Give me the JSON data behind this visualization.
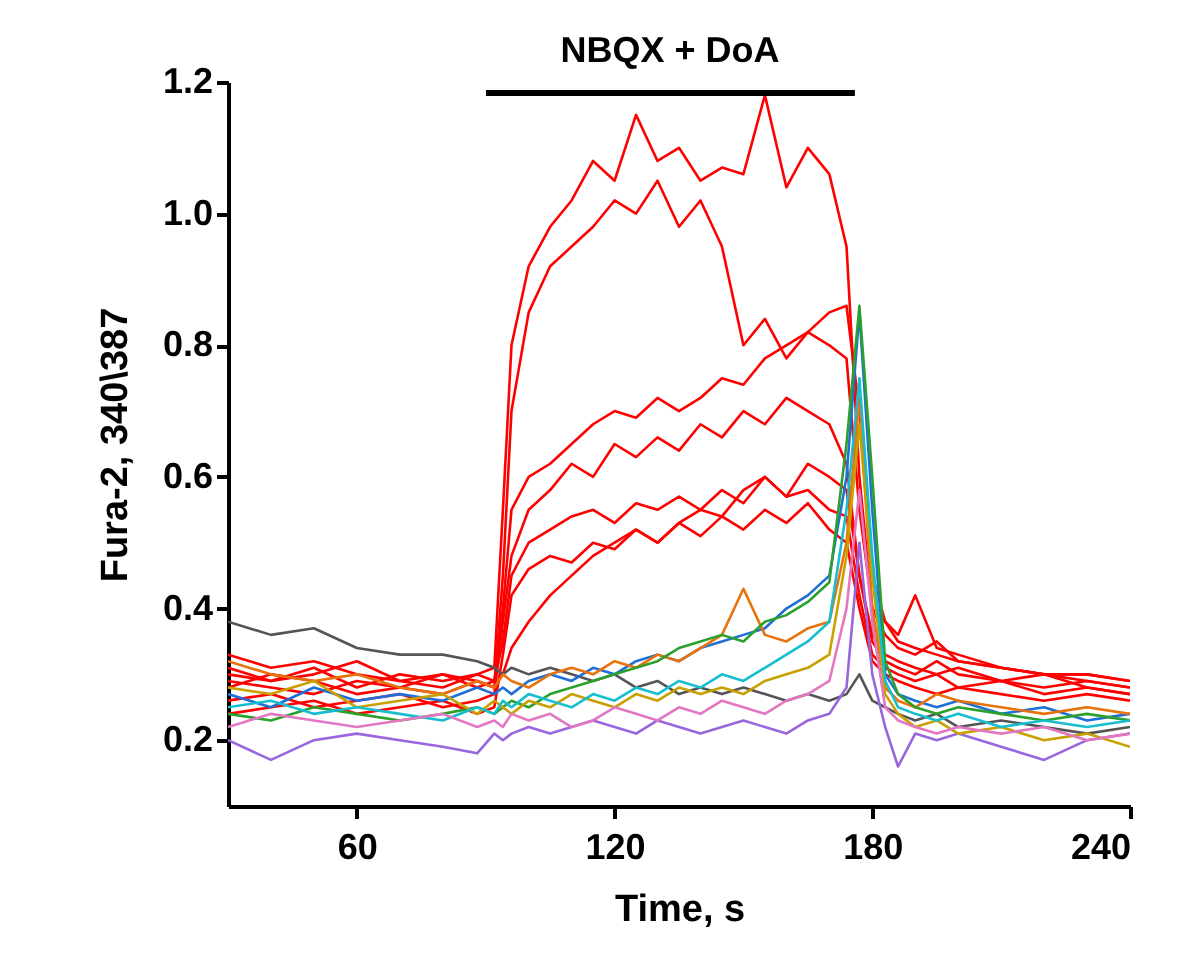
{
  "chart_data": {
    "type": "line",
    "xlabel": "Time,  s",
    "ylabel": "Fura-2, 340\\387",
    "x": [
      30,
      40,
      50,
      60,
      70,
      80,
      88,
      92,
      94,
      96,
      100,
      105,
      110,
      115,
      120,
      125,
      130,
      135,
      140,
      145,
      150,
      155,
      160,
      165,
      170,
      174,
      177,
      180,
      183,
      186,
      190,
      195,
      200,
      210,
      220,
      230,
      240
    ],
    "xlim": [
      30,
      240
    ],
    "xticks": [
      60,
      120,
      180,
      240
    ],
    "ylim": [
      0.1,
      1.2
    ],
    "yticks": [
      0.2,
      0.4,
      0.6,
      0.8,
      {
        "value": 1.0,
        "label": "1.0"
      },
      1.2
    ],
    "grid": false,
    "legend": false,
    "marker": "none",
    "line_style": "solid",
    "annotations": [
      "NBQX + DoA"
    ],
    "series": [
      {
        "color": "#ff0000",
        "values": [
          0.3,
          0.29,
          0.31,
          0.28,
          0.3,
          0.29,
          0.3,
          0.31,
          0.55,
          0.8,
          0.92,
          0.98,
          1.02,
          1.08,
          1.05,
          1.15,
          1.08,
          1.1,
          1.05,
          1.07,
          1.06,
          1.18,
          1.04,
          1.1,
          1.06,
          0.95,
          0.6,
          0.4,
          0.36,
          0.34,
          0.33,
          0.35,
          0.32,
          0.31,
          0.3,
          0.29,
          0.28
        ]
      },
      {
        "color": "#ff0000",
        "values": [
          0.28,
          0.3,
          0.29,
          0.27,
          0.28,
          0.3,
          0.29,
          0.28,
          0.45,
          0.7,
          0.85,
          0.92,
          0.95,
          0.98,
          1.02,
          1.0,
          1.05,
          0.98,
          1.02,
          0.95,
          0.8,
          0.84,
          0.78,
          0.82,
          0.8,
          0.78,
          0.55,
          0.4,
          0.38,
          0.36,
          0.42,
          0.34,
          0.33,
          0.31,
          0.3,
          0.3,
          0.29
        ]
      },
      {
        "color": "#ff0000",
        "values": [
          0.33,
          0.31,
          0.32,
          0.3,
          0.29,
          0.3,
          0.28,
          0.29,
          0.4,
          0.55,
          0.6,
          0.62,
          0.65,
          0.68,
          0.7,
          0.69,
          0.72,
          0.7,
          0.72,
          0.75,
          0.74,
          0.78,
          0.8,
          0.82,
          0.85,
          0.86,
          0.7,
          0.45,
          0.38,
          0.35,
          0.34,
          0.33,
          0.32,
          0.31,
          0.3,
          0.3,
          0.29
        ]
      },
      {
        "color": "#ff0000",
        "values": [
          0.26,
          0.27,
          0.25,
          0.26,
          0.27,
          0.25,
          0.26,
          0.27,
          0.38,
          0.48,
          0.55,
          0.58,
          0.62,
          0.6,
          0.65,
          0.63,
          0.66,
          0.64,
          0.68,
          0.66,
          0.7,
          0.68,
          0.72,
          0.7,
          0.68,
          0.62,
          0.45,
          0.36,
          0.33,
          0.32,
          0.31,
          0.3,
          0.31,
          0.29,
          0.28,
          0.29,
          0.28
        ]
      },
      {
        "color": "#ff0000",
        "values": [
          0.31,
          0.29,
          0.3,
          0.32,
          0.29,
          0.28,
          0.3,
          0.29,
          0.35,
          0.45,
          0.5,
          0.52,
          0.54,
          0.55,
          0.53,
          0.56,
          0.55,
          0.57,
          0.55,
          0.58,
          0.56,
          0.6,
          0.57,
          0.58,
          0.55,
          0.54,
          0.42,
          0.33,
          0.31,
          0.3,
          0.29,
          0.3,
          0.28,
          0.29,
          0.27,
          0.28,
          0.27
        ]
      },
      {
        "color": "#ff0000",
        "values": [
          0.24,
          0.25,
          0.26,
          0.24,
          0.25,
          0.26,
          0.24,
          0.25,
          0.33,
          0.42,
          0.46,
          0.48,
          0.47,
          0.5,
          0.49,
          0.52,
          0.5,
          0.53,
          0.51,
          0.54,
          0.52,
          0.55,
          0.53,
          0.56,
          0.52,
          0.5,
          0.4,
          0.32,
          0.3,
          0.29,
          0.28,
          0.27,
          0.28,
          0.27,
          0.26,
          0.27,
          0.26
        ]
      },
      {
        "color": "#ff0000",
        "values": [
          0.29,
          0.28,
          0.27,
          0.29,
          0.28,
          0.27,
          0.29,
          0.28,
          0.3,
          0.34,
          0.38,
          0.42,
          0.45,
          0.48,
          0.5,
          0.52,
          0.5,
          0.53,
          0.55,
          0.54,
          0.58,
          0.6,
          0.57,
          0.62,
          0.6,
          0.58,
          0.45,
          0.35,
          0.32,
          0.31,
          0.3,
          0.32,
          0.3,
          0.29,
          0.3,
          0.28,
          0.27
        ]
      },
      {
        "color": "#555555",
        "values": [
          0.38,
          0.36,
          0.37,
          0.34,
          0.33,
          0.33,
          0.32,
          0.31,
          0.3,
          0.31,
          0.3,
          0.31,
          0.3,
          0.29,
          0.3,
          0.28,
          0.29,
          0.27,
          0.28,
          0.27,
          0.28,
          0.27,
          0.26,
          0.27,
          0.26,
          0.27,
          0.3,
          0.26,
          0.25,
          0.24,
          0.23,
          0.24,
          0.22,
          0.23,
          0.22,
          0.21,
          0.22
        ]
      },
      {
        "color": "#9966dd",
        "values": [
          0.2,
          0.17,
          0.2,
          0.21,
          0.2,
          0.19,
          0.18,
          0.21,
          0.2,
          0.21,
          0.22,
          0.21,
          0.22,
          0.23,
          0.22,
          0.21,
          0.23,
          0.22,
          0.21,
          0.22,
          0.23,
          0.22,
          0.21,
          0.23,
          0.24,
          0.28,
          0.5,
          0.3,
          0.22,
          0.16,
          0.21,
          0.2,
          0.21,
          0.19,
          0.17,
          0.2,
          0.21
        ]
      },
      {
        "color": "#1f6fd6",
        "values": [
          0.27,
          0.25,
          0.28,
          0.26,
          0.27,
          0.26,
          0.28,
          0.27,
          0.28,
          0.27,
          0.29,
          0.3,
          0.29,
          0.31,
          0.3,
          0.32,
          0.33,
          0.32,
          0.34,
          0.35,
          0.36,
          0.37,
          0.4,
          0.42,
          0.45,
          0.6,
          0.85,
          0.55,
          0.3,
          0.27,
          0.26,
          0.25,
          0.26,
          0.24,
          0.25,
          0.23,
          0.24
        ]
      },
      {
        "color": "#e8720c",
        "values": [
          0.32,
          0.3,
          0.29,
          0.3,
          0.28,
          0.27,
          0.29,
          0.28,
          0.3,
          0.29,
          0.28,
          0.3,
          0.31,
          0.3,
          0.32,
          0.31,
          0.33,
          0.32,
          0.34,
          0.36,
          0.43,
          0.36,
          0.35,
          0.37,
          0.38,
          0.5,
          0.72,
          0.4,
          0.28,
          0.26,
          0.25,
          0.27,
          0.26,
          0.25,
          0.24,
          0.25,
          0.24
        ]
      },
      {
        "color": "#2ca02c",
        "values": [
          0.24,
          0.23,
          0.25,
          0.24,
          0.23,
          0.24,
          0.25,
          0.24,
          0.25,
          0.26,
          0.25,
          0.27,
          0.28,
          0.29,
          0.3,
          0.31,
          0.32,
          0.34,
          0.35,
          0.36,
          0.35,
          0.38,
          0.39,
          0.41,
          0.44,
          0.65,
          0.86,
          0.6,
          0.32,
          0.27,
          0.25,
          0.24,
          0.25,
          0.24,
          0.23,
          0.24,
          0.23
        ]
      },
      {
        "color": "#c8a000",
        "values": [
          0.28,
          0.27,
          0.29,
          0.25,
          0.26,
          0.27,
          0.24,
          0.26,
          0.25,
          0.24,
          0.26,
          0.25,
          0.27,
          0.26,
          0.25,
          0.27,
          0.26,
          0.28,
          0.27,
          0.28,
          0.27,
          0.29,
          0.3,
          0.31,
          0.33,
          0.48,
          0.68,
          0.45,
          0.27,
          0.24,
          0.22,
          0.23,
          0.21,
          0.22,
          0.2,
          0.21,
          0.19
        ]
      },
      {
        "color": "#17becf",
        "values": [
          0.25,
          0.26,
          0.24,
          0.25,
          0.24,
          0.23,
          0.25,
          0.24,
          0.26,
          0.25,
          0.27,
          0.26,
          0.25,
          0.27,
          0.26,
          0.28,
          0.27,
          0.29,
          0.28,
          0.3,
          0.29,
          0.31,
          0.33,
          0.35,
          0.38,
          0.55,
          0.75,
          0.48,
          0.29,
          0.25,
          0.24,
          0.23,
          0.24,
          0.22,
          0.23,
          0.22,
          0.23
        ]
      },
      {
        "color": "#e377c2",
        "values": [
          0.22,
          0.24,
          0.23,
          0.22,
          0.23,
          0.24,
          0.22,
          0.23,
          0.22,
          0.24,
          0.23,
          0.24,
          0.22,
          0.23,
          0.25,
          0.24,
          0.23,
          0.25,
          0.24,
          0.26,
          0.25,
          0.24,
          0.26,
          0.27,
          0.29,
          0.4,
          0.58,
          0.38,
          0.25,
          0.23,
          0.22,
          0.21,
          0.22,
          0.21,
          0.22,
          0.2,
          0.21
        ]
      }
    ]
  }
}
